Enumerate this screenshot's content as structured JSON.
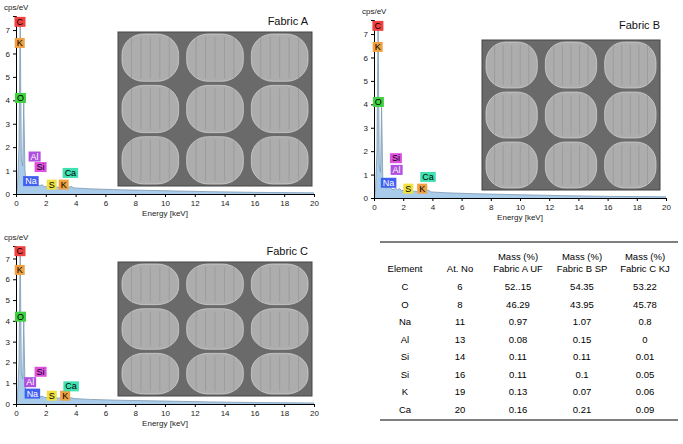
{
  "chart_data": [
    {
      "type": "area",
      "title": "Fabric A",
      "y_label": "cps/eV",
      "x_label": "Energy [keV]",
      "x": [
        0,
        0.1,
        0.2,
        0.28,
        0.36,
        0.45,
        0.52,
        0.6,
        0.7,
        0.85,
        1.0,
        1.04,
        1.1,
        1.3,
        1.49,
        1.6,
        1.74,
        1.9,
        2.2,
        2.31,
        2.5,
        3.0,
        3.31,
        3.5,
        3.69,
        3.9,
        5,
        7,
        10,
        13,
        16,
        20
      ],
      "values": [
        0,
        0.3,
        2.0,
        7.5,
        1.5,
        1.2,
        4.0,
        1.0,
        0.5,
        0.4,
        0.55,
        0.6,
        0.45,
        0.35,
        0.4,
        0.35,
        0.4,
        0.32,
        0.3,
        0.35,
        0.3,
        0.28,
        0.33,
        0.27,
        0.32,
        0.26,
        0.22,
        0.18,
        0.14,
        0.1,
        0.07,
        0.05
      ],
      "color": "#a9cbea",
      "xlim": [
        0,
        20
      ],
      "xticks": [
        0,
        2,
        4,
        6,
        8,
        10,
        12,
        14,
        16,
        18,
        20
      ],
      "ylim": [
        0,
        7.6
      ],
      "yticks": [
        0,
        1,
        2,
        3,
        4,
        5,
        6,
        7
      ],
      "annotations": [
        {
          "text": "C",
          "x": 0.25,
          "y": 7.35,
          "color": "#f04040"
        },
        {
          "text": "K",
          "x": 0.25,
          "y": 6.45,
          "color": "#f0a040"
        },
        {
          "text": "O",
          "x": 0.3,
          "y": 4.1,
          "color": "#40d040"
        },
        {
          "text": "Al",
          "x": 1.25,
          "y": 1.6,
          "color": "#b050e0"
        },
        {
          "text": "Si",
          "x": 1.65,
          "y": 1.15,
          "color": "#e050e0"
        },
        {
          "text": "Na",
          "x": 1.0,
          "y": 0.55,
          "color": "#4060f0"
        },
        {
          "text": "S",
          "x": 2.4,
          "y": 0.4,
          "color": "#f0e040"
        },
        {
          "text": "K",
          "x": 3.2,
          "y": 0.4,
          "color": "#f0a040"
        },
        {
          "text": "Ca",
          "x": 3.65,
          "y": 0.9,
          "color": "#40e0b0"
        }
      ]
    },
    {
      "type": "area",
      "title": "Fabric B",
      "y_label": "cps/eV",
      "x_label": "Energy [keV]",
      "x": [
        0,
        0.1,
        0.2,
        0.28,
        0.36,
        0.45,
        0.52,
        0.6,
        0.7,
        0.85,
        1.0,
        1.04,
        1.1,
        1.3,
        1.49,
        1.6,
        1.74,
        1.9,
        2.2,
        2.31,
        2.5,
        3.0,
        3.31,
        3.5,
        3.69,
        3.9,
        5,
        7,
        10,
        13,
        16,
        20
      ],
      "values": [
        0,
        0.3,
        2.0,
        7.5,
        1.4,
        1.1,
        3.9,
        0.9,
        0.5,
        0.4,
        0.6,
        0.65,
        0.45,
        0.35,
        0.42,
        0.35,
        0.4,
        0.32,
        0.3,
        0.34,
        0.3,
        0.28,
        0.32,
        0.27,
        0.34,
        0.26,
        0.22,
        0.18,
        0.14,
        0.1,
        0.07,
        0.05
      ],
      "color": "#a9cbea",
      "xlim": [
        0,
        20
      ],
      "xticks": [
        0,
        2,
        4,
        6,
        8,
        10,
        12,
        14,
        16,
        18,
        20
      ],
      "ylim": [
        0,
        7.6
      ],
      "yticks": [
        0,
        1,
        2,
        3,
        4,
        5,
        6,
        7
      ],
      "annotations": [
        {
          "text": "C",
          "x": 0.25,
          "y": 7.35,
          "color": "#f04040"
        },
        {
          "text": "K",
          "x": 0.25,
          "y": 6.45,
          "color": "#f0a040"
        },
        {
          "text": "O",
          "x": 0.3,
          "y": 4.1,
          "color": "#40d040"
        },
        {
          "text": "Si",
          "x": 1.5,
          "y": 1.7,
          "color": "#e050e0"
        },
        {
          "text": "Al",
          "x": 1.55,
          "y": 1.2,
          "color": "#b050e0"
        },
        {
          "text": "Na",
          "x": 1.0,
          "y": 0.65,
          "color": "#4060f0"
        },
        {
          "text": "S",
          "x": 2.35,
          "y": 0.4,
          "color": "#f0e040"
        },
        {
          "text": "K",
          "x": 3.3,
          "y": 0.4,
          "color": "#f0a040"
        },
        {
          "text": "Ca",
          "x": 3.7,
          "y": 0.9,
          "color": "#40e0b0"
        }
      ]
    },
    {
      "type": "area",
      "title": "Fabric C",
      "y_label": "cps/eV",
      "x_label": "Energy [keV]",
      "x": [
        0,
        0.1,
        0.2,
        0.28,
        0.36,
        0.45,
        0.52,
        0.6,
        0.7,
        0.85,
        1.0,
        1.04,
        1.1,
        1.3,
        1.49,
        1.6,
        1.74,
        1.9,
        2.2,
        2.31,
        2.5,
        3.0,
        3.31,
        3.5,
        3.69,
        3.9,
        5,
        7,
        10,
        13,
        16,
        20
      ],
      "values": [
        0,
        0.3,
        2.0,
        7.5,
        1.5,
        1.2,
        4.1,
        1.0,
        0.5,
        0.4,
        0.5,
        0.55,
        0.45,
        0.35,
        0.36,
        0.34,
        0.38,
        0.32,
        0.3,
        0.33,
        0.3,
        0.28,
        0.31,
        0.27,
        0.3,
        0.26,
        0.22,
        0.18,
        0.14,
        0.1,
        0.07,
        0.05
      ],
      "color": "#a9cbea",
      "xlim": [
        0,
        20
      ],
      "xticks": [
        0,
        2,
        4,
        6,
        8,
        10,
        12,
        14,
        16,
        18,
        20
      ],
      "ylim": [
        0,
        7.6
      ],
      "yticks": [
        0,
        1,
        2,
        3,
        4,
        5,
        6,
        7
      ],
      "annotations": [
        {
          "text": "C",
          "x": 0.25,
          "y": 7.35,
          "color": "#f04040"
        },
        {
          "text": "K",
          "x": 0.25,
          "y": 6.45,
          "color": "#f0a040"
        },
        {
          "text": "O",
          "x": 0.3,
          "y": 4.2,
          "color": "#40d040"
        },
        {
          "text": "Si",
          "x": 1.65,
          "y": 1.55,
          "color": "#e050e0"
        },
        {
          "text": "Al",
          "x": 0.95,
          "y": 1.05,
          "color": "#b050e0"
        },
        {
          "text": "Na",
          "x": 1.1,
          "y": 0.5,
          "color": "#4060f0"
        },
        {
          "text": "S",
          "x": 2.4,
          "y": 0.4,
          "color": "#f0e040"
        },
        {
          "text": "K",
          "x": 3.3,
          "y": 0.4,
          "color": "#f0a040"
        },
        {
          "text": "Ca",
          "x": 3.7,
          "y": 0.85,
          "color": "#40e0b0"
        }
      ]
    }
  ],
  "table": {
    "columns": [
      "Element",
      "At. No",
      "Mass (%) Fabric A UF",
      "Mass (%) Fabric B SP",
      "Mass (%) Fabric C KJ"
    ],
    "rows": [
      [
        "C",
        "6",
        "52..15",
        "54.35",
        "53.22"
      ],
      [
        "O",
        "8",
        "46.29",
        "43.95",
        "45.78"
      ],
      [
        "Na",
        "11",
        "0.97",
        "1.07",
        "0.8"
      ],
      [
        "Al",
        "13",
        "0.08",
        "0.15",
        "0"
      ],
      [
        "Si",
        "14",
        "0.11",
        "0.11",
        "0.01"
      ],
      [
        "Si",
        "16",
        "0.11",
        "0.1",
        "0.05"
      ],
      [
        "K",
        "19",
        "0.13",
        "0.07",
        "0.06"
      ],
      [
        "Ca",
        "20",
        "0.16",
        "0.21",
        "0.09"
      ]
    ]
  }
}
